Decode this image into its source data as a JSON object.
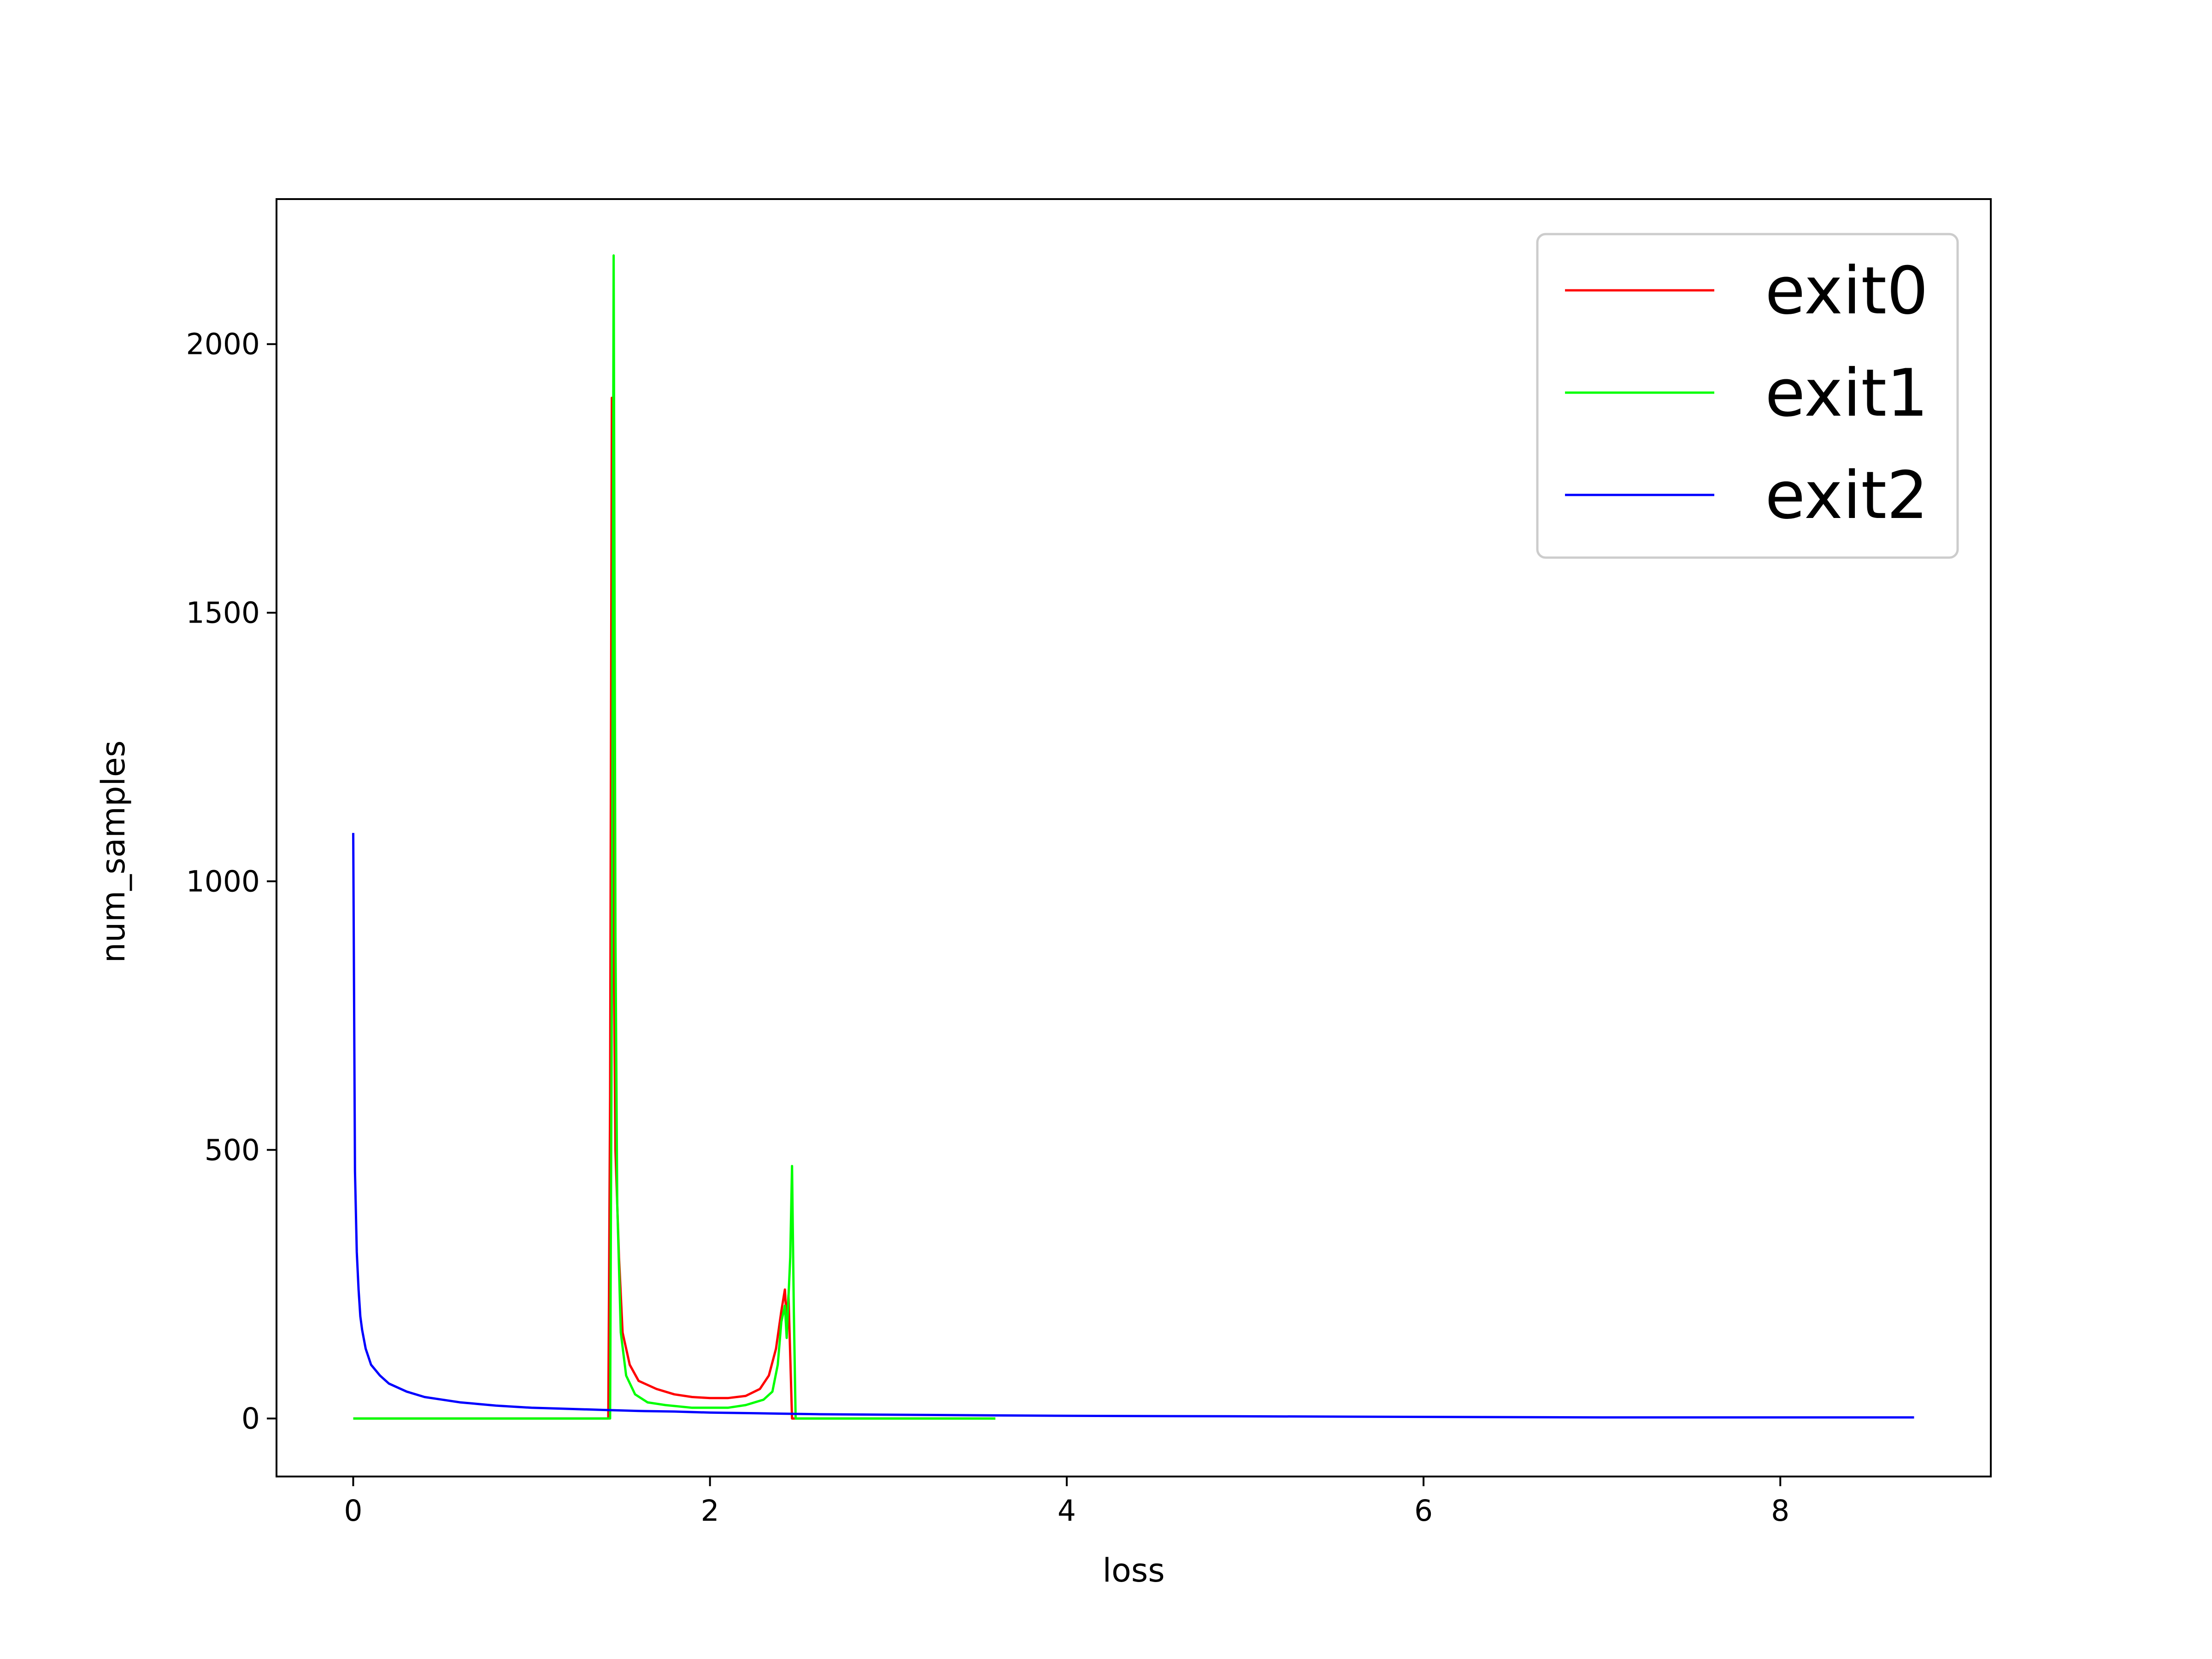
{
  "chart_data": {
    "type": "line",
    "title": "",
    "xlabel": "loss",
    "ylabel": "num_samples",
    "xlim": [
      -0.43,
      9.18
    ],
    "ylim": [
      -108,
      2270
    ],
    "xticks": [
      0,
      2,
      4,
      6,
      8
    ],
    "yticks": [
      0,
      500,
      1000,
      1500,
      2000
    ],
    "grid": false,
    "legend": "top-right",
    "series": [
      {
        "name": "exit0",
        "color": "#ff0000",
        "points": [
          [
            0,
            0
          ],
          [
            1.43,
            0
          ],
          [
            1.44,
            600
          ],
          [
            1.45,
            1900
          ],
          [
            1.46,
            900
          ],
          [
            1.47,
            500
          ],
          [
            1.49,
            300
          ],
          [
            1.51,
            160
          ],
          [
            1.55,
            100
          ],
          [
            1.6,
            70
          ],
          [
            1.7,
            55
          ],
          [
            1.8,
            45
          ],
          [
            1.9,
            40
          ],
          [
            2.0,
            38
          ],
          [
            2.1,
            38
          ],
          [
            2.2,
            42
          ],
          [
            2.28,
            55
          ],
          [
            2.33,
            80
          ],
          [
            2.37,
            130
          ],
          [
            2.4,
            200
          ],
          [
            2.42,
            240
          ],
          [
            2.43,
            180
          ],
          [
            2.44,
            230
          ],
          [
            2.46,
            0
          ],
          [
            3.6,
            0
          ]
        ]
      },
      {
        "name": "exit1",
        "color": "#00ff00",
        "points": [
          [
            0,
            0
          ],
          [
            1.44,
            0
          ],
          [
            1.45,
            800
          ],
          [
            1.46,
            2165
          ],
          [
            1.47,
            900
          ],
          [
            1.48,
            400
          ],
          [
            1.5,
            160
          ],
          [
            1.53,
            80
          ],
          [
            1.58,
            45
          ],
          [
            1.65,
            30
          ],
          [
            1.75,
            25
          ],
          [
            1.9,
            20
          ],
          [
            2.0,
            20
          ],
          [
            2.1,
            20
          ],
          [
            2.2,
            25
          ],
          [
            2.3,
            35
          ],
          [
            2.35,
            50
          ],
          [
            2.38,
            100
          ],
          [
            2.4,
            180
          ],
          [
            2.42,
            210
          ],
          [
            2.43,
            150
          ],
          [
            2.45,
            300
          ],
          [
            2.46,
            470
          ],
          [
            2.47,
            200
          ],
          [
            2.48,
            0
          ],
          [
            3.6,
            0
          ]
        ]
      },
      {
        "name": "exit2",
        "color": "#0000ff",
        "points": [
          [
            0.0,
            1090
          ],
          [
            0.01,
            460
          ],
          [
            0.02,
            310
          ],
          [
            0.03,
            240
          ],
          [
            0.04,
            190
          ],
          [
            0.05,
            165
          ],
          [
            0.07,
            130
          ],
          [
            0.1,
            100
          ],
          [
            0.15,
            80
          ],
          [
            0.2,
            65
          ],
          [
            0.3,
            50
          ],
          [
            0.4,
            40
          ],
          [
            0.5,
            35
          ],
          [
            0.6,
            30
          ],
          [
            0.7,
            27
          ],
          [
            0.8,
            24
          ],
          [
            0.9,
            22
          ],
          [
            1.0,
            20
          ],
          [
            1.2,
            18
          ],
          [
            1.4,
            16
          ],
          [
            1.6,
            14
          ],
          [
            1.8,
            13
          ],
          [
            2.0,
            11
          ],
          [
            2.2,
            10
          ],
          [
            2.4,
            9
          ],
          [
            2.6,
            8
          ],
          [
            3.0,
            7
          ],
          [
            3.5,
            6
          ],
          [
            4.0,
            5
          ],
          [
            5.0,
            4
          ],
          [
            6.0,
            3
          ],
          [
            7.0,
            2
          ],
          [
            8.0,
            2
          ],
          [
            8.75,
            2
          ]
        ]
      }
    ]
  }
}
